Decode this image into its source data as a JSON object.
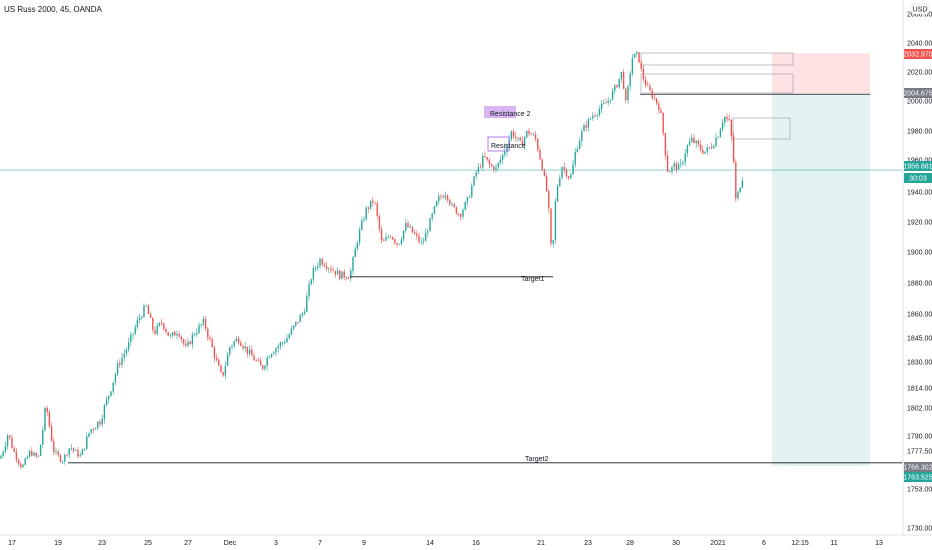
{
  "header": {
    "symbol": "US Russ 2000, 45, OANDA",
    "currency": "USD"
  },
  "colors": {
    "up": "#26a69a",
    "down": "#ef5350",
    "stopZone": "#fde3e3",
    "targetZone": "#e3f3f2",
    "line": "#131722",
    "priceLine": "#26a69a",
    "gray": "#787b86"
  },
  "chart_data": {
    "type": "candlestick",
    "title": "US Russ 2000, 45, OANDA",
    "ylabel": "USD",
    "ylim": [
      1720,
      2055
    ],
    "y_ticks": [
      "1730.000",
      "1753.000",
      "1777.500",
      "1790.000",
      "1802.000",
      "1814.000",
      "1830.000",
      "1845.000",
      "1860.000",
      "1880.000",
      "1900.000",
      "1920.000",
      "1940.000",
      "1960.000",
      "1980.000",
      "2000.000",
      "2020.000",
      "2040.000",
      "2060.000"
    ],
    "x_ticks": [
      "17",
      "19",
      "23",
      "25",
      "27",
      "Dec",
      "3",
      "7",
      "9",
      "14",
      "16",
      "21",
      "23",
      "28",
      "30",
      "2021",
      "6",
      "12:15",
      "11",
      "13"
    ],
    "grid": false,
    "ohlc_path": [
      [
        0,
        1770
      ],
      [
        8,
        1788
      ],
      [
        16,
        1772
      ],
      [
        22,
        1762
      ],
      [
        30,
        1776
      ],
      [
        38,
        1770
      ],
      [
        46,
        1804
      ],
      [
        54,
        1776
      ],
      [
        62,
        1768
      ],
      [
        70,
        1780
      ],
      [
        80,
        1772
      ],
      [
        90,
        1790
      ],
      [
        100,
        1795
      ],
      [
        110,
        1812
      ],
      [
        118,
        1828
      ],
      [
        128,
        1840
      ],
      [
        138,
        1856
      ],
      [
        146,
        1865
      ],
      [
        154,
        1848
      ],
      [
        162,
        1855
      ],
      [
        170,
        1845
      ],
      [
        178,
        1850
      ],
      [
        186,
        1838
      ],
      [
        194,
        1848
      ],
      [
        204,
        1855
      ],
      [
        214,
        1835
      ],
      [
        222,
        1820
      ],
      [
        230,
        1840
      ],
      [
        238,
        1845
      ],
      [
        246,
        1838
      ],
      [
        254,
        1832
      ],
      [
        262,
        1826
      ],
      [
        270,
        1836
      ],
      [
        278,
        1840
      ],
      [
        286,
        1844
      ],
      [
        294,
        1852
      ],
      [
        304,
        1862
      ],
      [
        312,
        1886
      ],
      [
        320,
        1895
      ],
      [
        330,
        1890
      ],
      [
        340,
        1885
      ],
      [
        350,
        1885
      ],
      [
        358,
        1910
      ],
      [
        366,
        1928
      ],
      [
        374,
        1935
      ],
      [
        382,
        1905
      ],
      [
        390,
        1912
      ],
      [
        398,
        1905
      ],
      [
        406,
        1918
      ],
      [
        414,
        1912
      ],
      [
        422,
        1905
      ],
      [
        430,
        1920
      ],
      [
        438,
        1935
      ],
      [
        446,
        1940
      ],
      [
        452,
        1930
      ],
      [
        460,
        1925
      ],
      [
        468,
        1935
      ],
      [
        476,
        1955
      ],
      [
        484,
        1965
      ],
      [
        490,
        1960
      ],
      [
        496,
        1958
      ],
      [
        504,
        1968
      ],
      [
        512,
        1980
      ],
      [
        520,
        1972
      ],
      [
        528,
        1980
      ],
      [
        536,
        1975
      ],
      [
        542,
        1960
      ],
      [
        548,
        1935
      ],
      [
        552,
        1893
      ],
      [
        556,
        1940
      ],
      [
        562,
        1960
      ],
      [
        570,
        1950
      ],
      [
        576,
        1970
      ],
      [
        584,
        1982
      ],
      [
        592,
        1990
      ],
      [
        600,
        1995
      ],
      [
        608,
        2000
      ],
      [
        616,
        2010
      ],
      [
        622,
        2020
      ],
      [
        626,
        1997
      ],
      [
        632,
        2030
      ],
      [
        638,
        2032
      ],
      [
        642,
        2018
      ],
      [
        648,
        2008
      ],
      [
        654,
        2002
      ],
      [
        660,
        1995
      ],
      [
        664,
        1975
      ],
      [
        668,
        1955
      ],
      [
        674,
        1960
      ],
      [
        680,
        1958
      ],
      [
        686,
        1970
      ],
      [
        692,
        1975
      ],
      [
        700,
        1970
      ],
      [
        706,
        1968
      ],
      [
        712,
        1972
      ],
      [
        718,
        1978
      ],
      [
        724,
        1990
      ],
      [
        730,
        1985
      ],
      [
        734,
        1960
      ],
      [
        736,
        1932
      ],
      [
        740,
        1945
      ],
      [
        744,
        1955
      ]
    ],
    "target1_price": 1884,
    "target2_price": 1766.302,
    "markers": [
      {
        "label": "2032.970",
        "price": 2032.97,
        "color": "#ef5350"
      },
      {
        "label": "2004.675",
        "price": 2004.675,
        "color": "#787b86"
      },
      {
        "label": "1956.881",
        "price": 1956.881,
        "color": "#26a69a"
      },
      {
        "label": "30:03",
        "price": 1945,
        "color": "#26a69a"
      },
      {
        "label": "1766.302",
        "price": 1766.302,
        "color": "#787b86"
      },
      {
        "label": "1763.525",
        "price": 1761.5,
        "color": "#26a69a"
      }
    ],
    "annotations": [
      {
        "text": "Resistance 2",
        "price": 1991,
        "x": 486
      },
      {
        "text": "Resistance",
        "price": 1973,
        "x": 489
      },
      {
        "text": "Target1",
        "price": 1880,
        "x": 521
      },
      {
        "text": "Target2",
        "price": 1771,
        "x": 525
      }
    ]
  }
}
